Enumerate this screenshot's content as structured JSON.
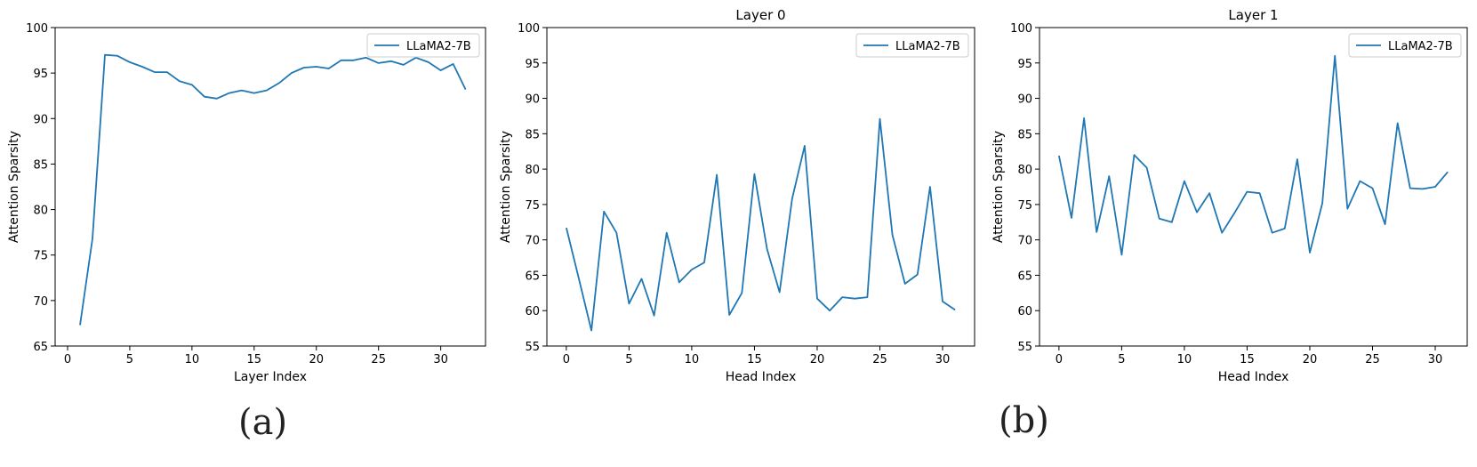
{
  "captions": {
    "a": "(a)",
    "b": "(b)"
  },
  "chart_data": [
    {
      "type": "line",
      "title": "",
      "xlabel": "Layer Index",
      "ylabel": "Attention Sparsity",
      "xlim": [
        -1,
        33.6
      ],
      "ylim": [
        65,
        100
      ],
      "xticks": [
        0,
        5,
        10,
        15,
        20,
        25,
        30
      ],
      "yticks": [
        65,
        70,
        75,
        80,
        85,
        90,
        95,
        100
      ],
      "legend": "upper right",
      "color": "#1f77b4",
      "series": [
        {
          "name": "LLaMA2-7B",
          "x": [
            1,
            2,
            3,
            4,
            5,
            6,
            7,
            8,
            9,
            10,
            11,
            12,
            13,
            14,
            15,
            16,
            17,
            18,
            19,
            20,
            21,
            22,
            23,
            24,
            25,
            26,
            27,
            28,
            29,
            30,
            31,
            32
          ],
          "values": [
            67.3,
            76.8,
            97.0,
            96.9,
            96.2,
            95.7,
            95.1,
            95.1,
            94.1,
            93.7,
            92.4,
            92.2,
            92.8,
            93.1,
            92.8,
            93.1,
            93.9,
            95.0,
            95.6,
            95.7,
            95.5,
            96.4,
            96.4,
            96.7,
            96.1,
            96.3,
            95.9,
            96.7,
            96.2,
            95.3,
            96.0,
            93.2
          ]
        }
      ]
    },
    {
      "type": "line",
      "title": "Layer 0",
      "xlabel": "Head Index",
      "ylabel": "Attention Sparsity",
      "xlim": [
        -1.55,
        32.55
      ],
      "ylim": [
        55,
        100
      ],
      "xticks": [
        0,
        5,
        10,
        15,
        20,
        25,
        30
      ],
      "yticks": [
        55,
        60,
        65,
        70,
        75,
        80,
        85,
        90,
        95,
        100
      ],
      "legend": "upper right",
      "color": "#1f77b4",
      "series": [
        {
          "name": "LLaMA2-7B",
          "x": [
            0,
            1,
            2,
            3,
            4,
            5,
            6,
            7,
            8,
            9,
            10,
            11,
            12,
            13,
            14,
            15,
            16,
            17,
            18,
            19,
            20,
            21,
            22,
            23,
            24,
            25,
            26,
            27,
            28,
            29,
            30,
            31
          ],
          "values": [
            71.7,
            64.5,
            57.2,
            74.0,
            71.0,
            61.0,
            64.5,
            59.3,
            71.0,
            64.0,
            65.8,
            66.8,
            79.2,
            59.4,
            62.5,
            79.3,
            68.7,
            62.6,
            75.8,
            83.3,
            61.7,
            60.0,
            61.9,
            61.7,
            61.9,
            87.1,
            70.7,
            63.8,
            65.1,
            77.5,
            61.3,
            60.1
          ]
        }
      ]
    },
    {
      "type": "line",
      "title": "Layer 1",
      "xlabel": "Head Index",
      "ylabel": "Attention Sparsity",
      "xlim": [
        -1.55,
        32.55
      ],
      "ylim": [
        55,
        100
      ],
      "xticks": [
        0,
        5,
        10,
        15,
        20,
        25,
        30
      ],
      "yticks": [
        55,
        60,
        65,
        70,
        75,
        80,
        85,
        90,
        95,
        100
      ],
      "legend": "upper right",
      "color": "#1f77b4",
      "series": [
        {
          "name": "LLaMA2-7B",
          "x": [
            0,
            1,
            2,
            3,
            4,
            5,
            6,
            7,
            8,
            9,
            10,
            11,
            12,
            13,
            14,
            15,
            16,
            17,
            18,
            19,
            20,
            21,
            22,
            23,
            24,
            25,
            26,
            27,
            28,
            29,
            30,
            31
          ],
          "values": [
            81.9,
            73.1,
            87.2,
            71.1,
            79.0,
            67.9,
            82.0,
            80.2,
            73.0,
            72.5,
            78.3,
            73.9,
            76.6,
            71.0,
            73.8,
            76.8,
            76.6,
            71.0,
            71.6,
            81.4,
            68.2,
            75.2,
            96.0,
            74.4,
            78.3,
            77.3,
            72.2,
            86.5,
            77.3,
            77.2,
            77.5,
            79.6
          ]
        }
      ]
    }
  ]
}
